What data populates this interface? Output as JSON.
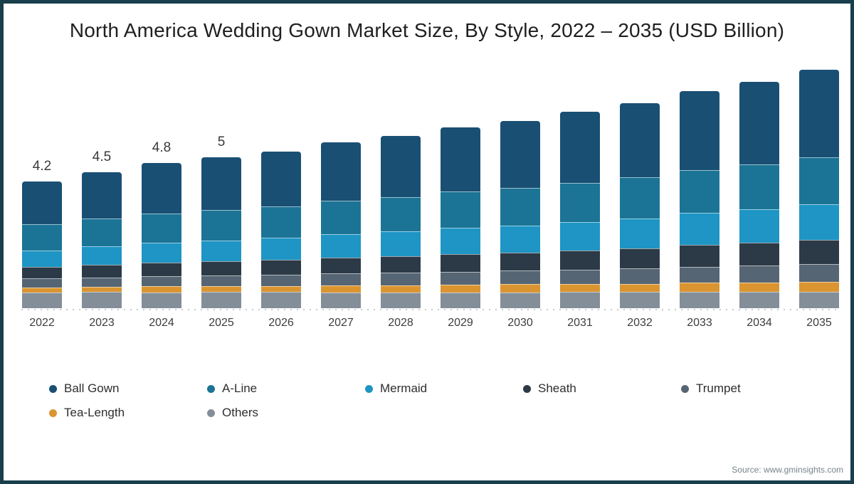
{
  "frame": {
    "border_color": "#183f4b",
    "background": "#ffffff"
  },
  "title": "North America Wedding Gown Market Size, By Style, 2022 – 2035 (USD Billion)",
  "chart_data": {
    "type": "bar",
    "stacked": true,
    "unit": "USD Billion",
    "title": "North America Wedding Gown Market Size, By Style, 2022 – 2035 (USD Billion)",
    "categories": [
      "2022",
      "2023",
      "2024",
      "2025",
      "2026",
      "2027",
      "2028",
      "2029",
      "2030",
      "2031",
      "2032",
      "2033",
      "2034",
      "2035"
    ],
    "series": [
      {
        "name": "Ball Gown",
        "color": "#1a4f74",
        "values": [
          1.42,
          1.54,
          1.66,
          1.74,
          1.82,
          1.94,
          2.02,
          2.14,
          2.22,
          2.34,
          2.47,
          2.62,
          2.74,
          2.9
        ]
      },
      {
        "name": "A-Line",
        "color": "#1b7495",
        "values": [
          0.86,
          0.92,
          0.97,
          1.01,
          1.05,
          1.11,
          1.14,
          1.2,
          1.24,
          1.3,
          1.35,
          1.43,
          1.48,
          1.56
        ]
      },
      {
        "name": "Mermaid",
        "color": "#1e95c4",
        "values": [
          0.55,
          0.6,
          0.65,
          0.69,
          0.72,
          0.77,
          0.81,
          0.86,
          0.89,
          0.94,
          0.99,
          1.06,
          1.11,
          1.18
        ]
      },
      {
        "name": "Sheath",
        "color": "#2c3a47",
        "values": [
          0.39,
          0.42,
          0.46,
          0.48,
          0.5,
          0.53,
          0.56,
          0.59,
          0.61,
          0.64,
          0.68,
          0.72,
          0.76,
          0.8
        ]
      },
      {
        "name": "Trumpet",
        "color": "#566573",
        "values": [
          0.29,
          0.31,
          0.34,
          0.35,
          0.37,
          0.4,
          0.41,
          0.44,
          0.45,
          0.48,
          0.5,
          0.53,
          0.56,
          0.59
        ]
      },
      {
        "name": "Tea-Length",
        "color": "#db9530",
        "values": [
          0.17,
          0.18,
          0.2,
          0.2,
          0.21,
          0.23,
          0.23,
          0.25,
          0.26,
          0.27,
          0.28,
          0.3,
          0.31,
          0.33
        ]
      },
      {
        "name": "Others",
        "color": "#848e99",
        "values": [
          0.52,
          0.53,
          0.52,
          0.53,
          0.53,
          0.52,
          0.53,
          0.52,
          0.53,
          0.53,
          0.53,
          0.54,
          0.54,
          0.54
        ]
      }
    ],
    "totals": [
      4.2,
      4.5,
      4.8,
      5.0,
      5.2,
      5.5,
      5.7,
      6.0,
      6.2,
      6.5,
      6.8,
      7.2,
      7.5,
      7.9
    ],
    "bar_labels": [
      "4.2",
      "4.5",
      "4.8",
      "5",
      "",
      "",
      "",
      "",
      "",
      "",
      "",
      "",
      "",
      ""
    ],
    "ylim": [
      0,
      8
    ],
    "grid": false,
    "legend_position": "bottom"
  },
  "source": "Source: www.gminsights.com"
}
